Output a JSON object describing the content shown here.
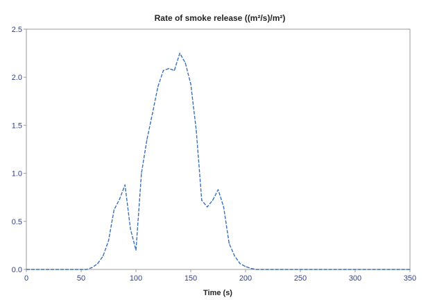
{
  "chart_data": {
    "type": "line",
    "title": "Rate of smoke release ((m²/s)/m²)",
    "xlabel": "Time (s)",
    "ylabel": "",
    "xlim": [
      0,
      350
    ],
    "ylim": [
      0,
      2.5
    ],
    "xticks": [
      0,
      50,
      100,
      150,
      200,
      250,
      300,
      350
    ],
    "yticks": [
      0.0,
      0.5,
      1.0,
      1.5,
      2.0,
      2.5
    ],
    "xtick_labels": [
      "0",
      "50",
      "100",
      "150",
      "200",
      "250",
      "300",
      "350"
    ],
    "ytick_labels": [
      "0.0",
      "0.5",
      "1.0",
      "1.5",
      "2.0",
      "2.5"
    ],
    "grid": false,
    "series": [
      {
        "color": "#3a6fb5",
        "x": [
          0,
          55,
          60,
          65,
          70,
          75,
          80,
          85,
          90,
          95,
          100,
          105,
          110,
          115,
          120,
          125,
          130,
          135,
          140,
          145,
          150,
          155,
          160,
          165,
          170,
          175,
          180,
          185,
          190,
          195,
          200,
          205,
          210,
          215,
          220,
          350
        ],
        "y": [
          0.0,
          0.0,
          0.02,
          0.06,
          0.14,
          0.3,
          0.62,
          0.73,
          0.88,
          0.42,
          0.2,
          1.0,
          1.35,
          1.62,
          1.9,
          2.07,
          2.09,
          2.07,
          2.25,
          2.15,
          1.93,
          1.45,
          0.72,
          0.65,
          0.72,
          0.83,
          0.65,
          0.27,
          0.14,
          0.06,
          0.03,
          0.01,
          0.0,
          0.0,
          0.0,
          0.0
        ]
      }
    ]
  }
}
